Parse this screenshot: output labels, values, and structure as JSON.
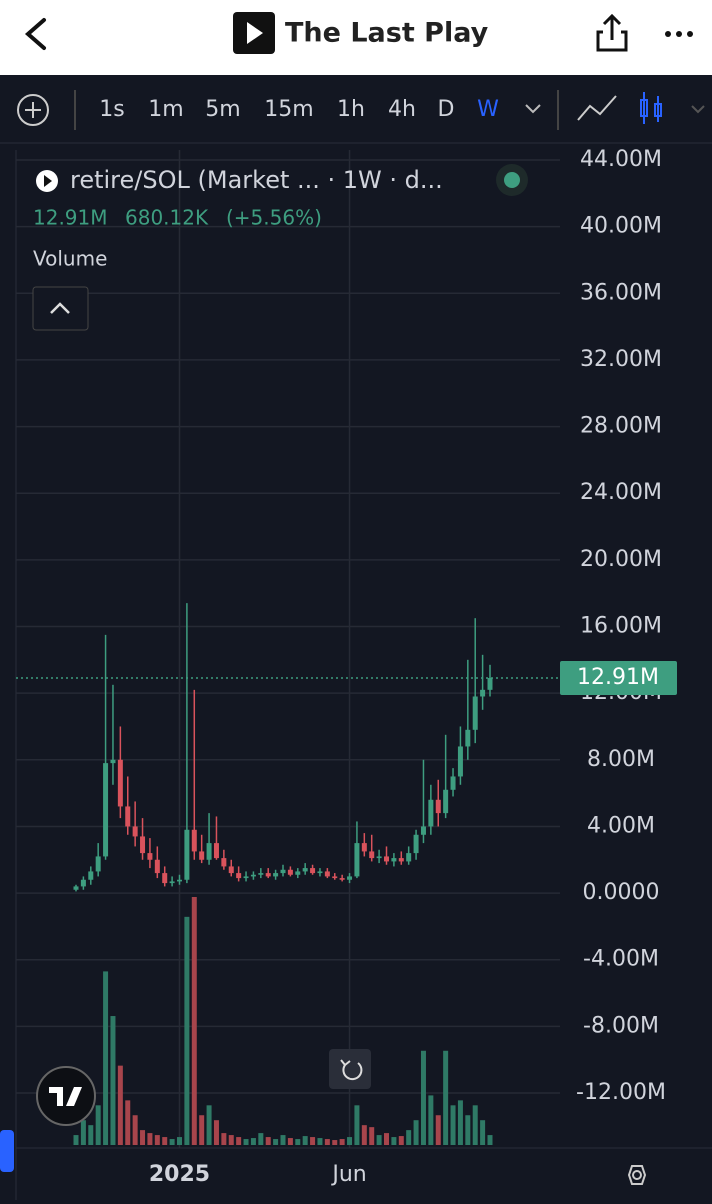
{
  "header": {
    "title": "The Last Play"
  },
  "toolbar": {
    "intervals": [
      "1s",
      "1m",
      "5m",
      "15m",
      "1h",
      "4h",
      "D",
      "W"
    ],
    "active": 7
  },
  "chart_data": {
    "type": "candlestick",
    "legend": {
      "symbol": "retire/SOL (Market ... · 1W · d...",
      "price": "12.91M",
      "change": "680.12K",
      "change_pct": "(+5.56%)",
      "volume": "Volume"
    },
    "up_color": "#3e9e80",
    "down_color": "#d9535c",
    "up_volume_color": "#2f7a66",
    "down_volume_color": "#a8454c",
    "ylim": [
      -15.3,
      44.6
    ],
    "yticks": [
      {
        "value": 44,
        "label": "44.00M"
      },
      {
        "value": 40,
        "label": "40.00M"
      },
      {
        "value": 36,
        "label": "36.00M"
      },
      {
        "value": 32,
        "label": "32.00M"
      },
      {
        "value": 28,
        "label": "28.00M"
      },
      {
        "value": 24,
        "label": "24.00M"
      },
      {
        "value": 20,
        "label": "20.00M"
      },
      {
        "value": 16,
        "label": "16.00M"
      },
      {
        "value": 12,
        "label": "12.00M"
      },
      {
        "value": 8,
        "label": "8.00M"
      },
      {
        "value": 4,
        "label": "4.00M"
      },
      {
        "value": 0,
        "label": "0.0000"
      },
      {
        "value": -4,
        "label": "-4.00M"
      },
      {
        "value": -8,
        "label": "-8.00M"
      },
      {
        "value": -12,
        "label": "-12.00M"
      }
    ],
    "grid": true,
    "categories": [
      null,
      null,
      null,
      null,
      null,
      null,
      null,
      null,
      null,
      null,
      null,
      null,
      null,
      null,
      "2025",
      null,
      null,
      null,
      null,
      null,
      null,
      null,
      null,
      null,
      null,
      null,
      null,
      null,
      null,
      null,
      null,
      null,
      null,
      null,
      null,
      null,
      null,
      "Jun",
      null,
      null,
      null,
      null,
      null,
      null,
      null,
      null,
      null,
      null,
      null,
      null,
      null,
      null,
      null,
      null,
      null,
      null,
      null
    ],
    "open": [
      0.2,
      0.4,
      0.8,
      1.3,
      2.2,
      7.8,
      8.0,
      5.2,
      4.0,
      3.4,
      2.4,
      2.0,
      1.2,
      0.6,
      0.7,
      0.8,
      3.8,
      2.5,
      2.0,
      3.0,
      2.1,
      1.6,
      1.2,
      0.9,
      1.0,
      1.1,
      1.2,
      1.0,
      1.2,
      1.4,
      1.1,
      1.3,
      1.5,
      1.2,
      1.3,
      1.0,
      0.9,
      0.8,
      1.0,
      3.0,
      2.5,
      2.1,
      2.2,
      1.9,
      2.1,
      1.9,
      2.4,
      3.5,
      4.0,
      5.6,
      4.8,
      6.2,
      7.0,
      8.8,
      9.8,
      11.8,
      12.2
    ],
    "high": [
      0.5,
      1.0,
      1.6,
      3.0,
      15.5,
      12.5,
      10.0,
      7.0,
      5.5,
      4.5,
      3.3,
      2.8,
      1.6,
      1.0,
      1.1,
      17.4,
      12.2,
      3.5,
      4.8,
      4.6,
      2.6,
      2.0,
      1.6,
      1.3,
      1.3,
      1.5,
      1.5,
      1.4,
      1.7,
      1.6,
      1.5,
      1.8,
      1.7,
      1.5,
      1.5,
      1.2,
      1.1,
      1.2,
      4.3,
      3.6,
      3.5,
      2.6,
      2.8,
      2.4,
      2.5,
      2.8,
      3.8,
      8.0,
      6.5,
      6.8,
      9.5,
      7.5,
      10.0,
      14.0,
      16.5,
      14.3,
      13.7
    ],
    "low": [
      0.1,
      0.2,
      0.5,
      1.0,
      2.0,
      6.5,
      4.5,
      3.5,
      2.8,
      2.0,
      1.5,
      0.9,
      0.4,
      0.4,
      0.5,
      0.6,
      2.0,
      1.8,
      1.7,
      2.0,
      1.4,
      1.0,
      0.7,
      0.7,
      0.8,
      0.9,
      0.9,
      0.8,
      1.0,
      1.0,
      0.9,
      1.1,
      1.1,
      1.0,
      0.9,
      0.8,
      0.7,
      0.6,
      0.9,
      2.2,
      1.9,
      1.8,
      1.7,
      1.6,
      1.7,
      1.7,
      2.0,
      3.0,
      3.5,
      4.0,
      4.5,
      5.8,
      6.5,
      8.0,
      9.0,
      11.0,
      11.8
    ],
    "close": [
      0.4,
      0.8,
      1.3,
      2.2,
      7.8,
      8.0,
      5.2,
      4.0,
      3.4,
      2.4,
      2.0,
      1.2,
      0.6,
      0.7,
      0.8,
      3.8,
      2.5,
      2.0,
      3.0,
      2.1,
      1.6,
      1.2,
      0.9,
      1.0,
      1.1,
      1.2,
      1.0,
      1.2,
      1.4,
      1.1,
      1.3,
      1.5,
      1.2,
      1.3,
      1.0,
      0.9,
      0.8,
      1.0,
      3.0,
      2.5,
      2.1,
      2.2,
      1.9,
      2.1,
      1.9,
      2.4,
      3.5,
      4.0,
      5.6,
      4.8,
      6.2,
      7.0,
      8.8,
      9.8,
      11.8,
      12.2,
      12.91
    ],
    "volume": [
      10,
      25,
      20,
      40,
      175,
      130,
      80,
      45,
      30,
      15,
      12,
      10,
      8,
      6,
      8,
      230,
      250,
      30,
      40,
      25,
      12,
      10,
      8,
      6,
      7,
      12,
      8,
      6,
      10,
      7,
      6,
      9,
      8,
      7,
      6,
      5,
      6,
      8,
      40,
      20,
      18,
      10,
      12,
      8,
      9,
      15,
      25,
      95,
      50,
      30,
      95,
      40,
      45,
      30,
      40,
      25,
      10
    ]
  }
}
